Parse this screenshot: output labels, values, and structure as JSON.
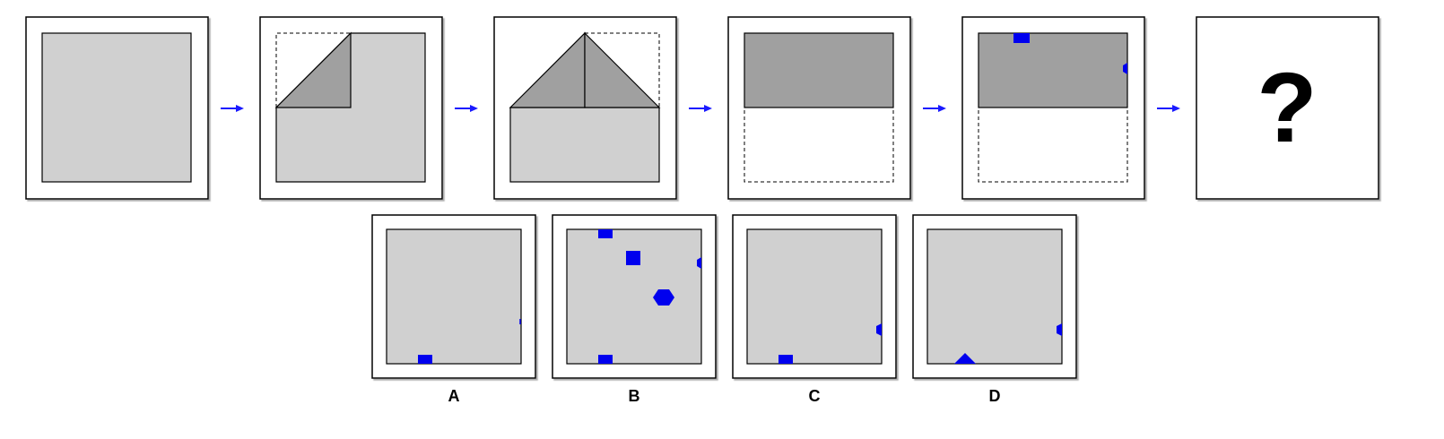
{
  "puzzle": {
    "question_mark": "?",
    "options": [
      {
        "label": "A"
      },
      {
        "label": "B"
      },
      {
        "label": "C"
      },
      {
        "label": "D"
      }
    ]
  },
  "colors": {
    "paper": "#d0d0d0",
    "folded": "#a0a0a0",
    "hole": "#0000ee",
    "arrow": "#1a1aff",
    "frame": "#000000"
  }
}
